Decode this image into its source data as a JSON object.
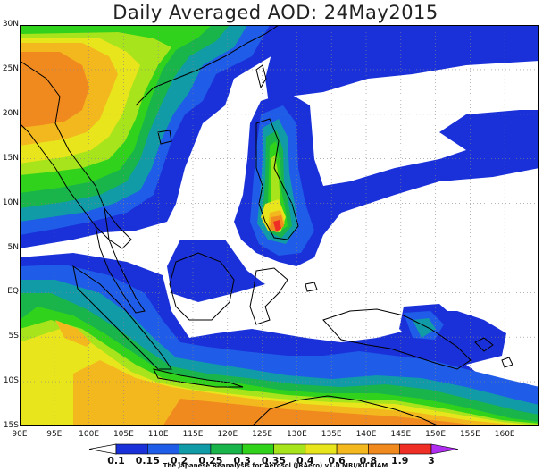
{
  "title": "Daily Averaged AOD: 24May2015",
  "lat_labels": [
    "30N",
    "25N",
    "20N",
    "15N",
    "10N",
    "5N",
    "EQ",
    "5S",
    "10S",
    "15S"
  ],
  "lon_labels": [
    "90E",
    "95E",
    "100E",
    "105E",
    "110E",
    "115E",
    "120E",
    "125E",
    "130E",
    "135E",
    "140E",
    "145E",
    "150E",
    "155E",
    "160E"
  ],
  "colorbar": {
    "levels": [
      "0.1",
      "0.15",
      "0.2",
      "0.25",
      "0.3",
      "0.35",
      "0.4",
      "0.6",
      "0.8",
      "1.9",
      "3"
    ],
    "colors": [
      "#1a31d9",
      "#1f5ce8",
      "#109ba6",
      "#19b54a",
      "#30d21b",
      "#a7e41b",
      "#e8e51d",
      "#f3b81e",
      "#f08a1f",
      "#ef2e26",
      "#b02ef0"
    ]
  },
  "credit": "The Japanese Reanalysis for Aerosol (JRAero) v1.0 MRI/KU RIAM"
}
